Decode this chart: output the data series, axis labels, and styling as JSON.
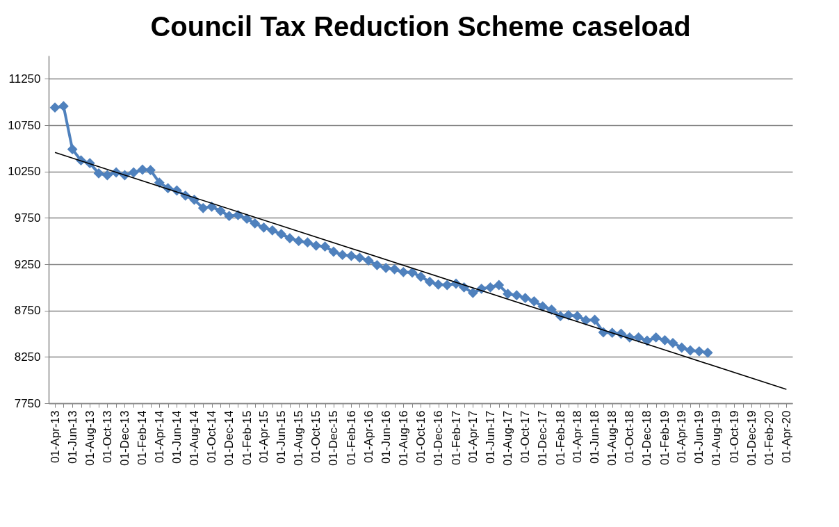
{
  "chart_data": {
    "type": "line",
    "title": "Council Tax Reduction Scheme caseload",
    "xlim": [
      "2013-03-10",
      "2020-04-22"
    ],
    "ylim": [
      7750,
      11500
    ],
    "yticks": [
      7750,
      8250,
      8750,
      9250,
      9750,
      10250,
      10750,
      11250
    ],
    "grid": "y",
    "legend": false,
    "marker": "diamond",
    "line_style": "solid",
    "xticks": [
      {
        "value": "2013-04-01",
        "label": "01-Apr-13"
      },
      {
        "value": "2013-05-01",
        "label": null
      },
      {
        "value": "2013-06-01",
        "label": "01-Jun-13"
      },
      {
        "value": "2013-07-01",
        "label": null
      },
      {
        "value": "2013-08-01",
        "label": "01-Aug-13"
      },
      {
        "value": "2013-09-01",
        "label": null
      },
      {
        "value": "2013-10-01",
        "label": "01-Oct-13"
      },
      {
        "value": "2013-11-01",
        "label": null
      },
      {
        "value": "2013-12-01",
        "label": "01-Dec-13"
      },
      {
        "value": "2014-01-01",
        "label": null
      },
      {
        "value": "2014-02-01",
        "label": "01-Feb-14"
      },
      {
        "value": "2014-03-01",
        "label": null
      },
      {
        "value": "2014-04-01",
        "label": "01-Apr-14"
      },
      {
        "value": "2014-05-01",
        "label": null
      },
      {
        "value": "2014-06-01",
        "label": "01-Jun-14"
      },
      {
        "value": "2014-07-01",
        "label": null
      },
      {
        "value": "2014-08-01",
        "label": "01-Aug-14"
      },
      {
        "value": "2014-09-01",
        "label": null
      },
      {
        "value": "2014-10-01",
        "label": "01-Oct-14"
      },
      {
        "value": "2014-11-01",
        "label": null
      },
      {
        "value": "2014-12-01",
        "label": "01-Dec-14"
      },
      {
        "value": "2015-01-01",
        "label": null
      },
      {
        "value": "2015-02-01",
        "label": "01-Feb-15"
      },
      {
        "value": "2015-03-01",
        "label": null
      },
      {
        "value": "2015-04-01",
        "label": "01-Apr-15"
      },
      {
        "value": "2015-05-01",
        "label": null
      },
      {
        "value": "2015-06-01",
        "label": "01-Jun-15"
      },
      {
        "value": "2015-07-01",
        "label": null
      },
      {
        "value": "2015-08-01",
        "label": "01-Aug-15"
      },
      {
        "value": "2015-09-01",
        "label": null
      },
      {
        "value": "2015-10-01",
        "label": "01-Oct-15"
      },
      {
        "value": "2015-11-01",
        "label": null
      },
      {
        "value": "2015-12-01",
        "label": "01-Dec-15"
      },
      {
        "value": "2016-01-01",
        "label": null
      },
      {
        "value": "2016-02-01",
        "label": "01-Feb-16"
      },
      {
        "value": "2016-03-01",
        "label": null
      },
      {
        "value": "2016-04-01",
        "label": "01-Apr-16"
      },
      {
        "value": "2016-05-01",
        "label": null
      },
      {
        "value": "2016-06-01",
        "label": "01-Jun-16"
      },
      {
        "value": "2016-07-01",
        "label": null
      },
      {
        "value": "2016-08-01",
        "label": "01-Aug-16"
      },
      {
        "value": "2016-09-01",
        "label": null
      },
      {
        "value": "2016-10-01",
        "label": "01-Oct-16"
      },
      {
        "value": "2016-11-01",
        "label": null
      },
      {
        "value": "2016-12-01",
        "label": "01-Dec-16"
      },
      {
        "value": "2017-01-01",
        "label": null
      },
      {
        "value": "2017-02-01",
        "label": "01-Feb-17"
      },
      {
        "value": "2017-03-01",
        "label": null
      },
      {
        "value": "2017-04-01",
        "label": "01-Apr-17"
      },
      {
        "value": "2017-05-01",
        "label": null
      },
      {
        "value": "2017-06-01",
        "label": "01-Jun-17"
      },
      {
        "value": "2017-07-01",
        "label": null
      },
      {
        "value": "2017-08-01",
        "label": "01-Aug-17"
      },
      {
        "value": "2017-09-01",
        "label": null
      },
      {
        "value": "2017-10-01",
        "label": "01-Oct-17"
      },
      {
        "value": "2017-11-01",
        "label": null
      },
      {
        "value": "2017-12-01",
        "label": "01-Dec-17"
      },
      {
        "value": "2018-01-01",
        "label": null
      },
      {
        "value": "2018-02-01",
        "label": "01-Feb-18"
      },
      {
        "value": "2018-03-01",
        "label": null
      },
      {
        "value": "2018-04-01",
        "label": "01-Apr-18"
      },
      {
        "value": "2018-05-01",
        "label": null
      },
      {
        "value": "2018-06-01",
        "label": "01-Jun-18"
      },
      {
        "value": "2018-07-01",
        "label": null
      },
      {
        "value": "2018-08-01",
        "label": "01-Aug-18"
      },
      {
        "value": "2018-09-01",
        "label": null
      },
      {
        "value": "2018-10-01",
        "label": "01-Oct-18"
      },
      {
        "value": "2018-11-01",
        "label": null
      },
      {
        "value": "2018-12-01",
        "label": "01-Dec-18"
      },
      {
        "value": "2019-01-01",
        "label": null
      },
      {
        "value": "2019-02-01",
        "label": "01-Feb-19"
      },
      {
        "value": "2019-03-01",
        "label": null
      },
      {
        "value": "2019-04-01",
        "label": "01-Apr-19"
      },
      {
        "value": "2019-05-01",
        "label": null
      },
      {
        "value": "2019-06-01",
        "label": "01-Jun-19"
      },
      {
        "value": "2019-07-01",
        "label": null
      },
      {
        "value": "2019-08-01",
        "label": "01-Aug-19"
      },
      {
        "value": "2019-09-01",
        "label": null
      },
      {
        "value": "2019-10-01",
        "label": "01-Oct-19"
      },
      {
        "value": "2019-11-01",
        "label": null
      },
      {
        "value": "2019-12-01",
        "label": "01-Dec-19"
      },
      {
        "value": "2020-01-01",
        "label": null
      },
      {
        "value": "2020-02-01",
        "label": "01-Feb-20"
      },
      {
        "value": "2020-03-01",
        "label": null
      },
      {
        "value": "2020-04-01",
        "label": "01-Apr-20"
      }
    ],
    "series": [
      {
        "type": "line",
        "color": "#4f81bd",
        "x": [
          "2013-04-01",
          "2013-05-01",
          "2013-06-01",
          "2013-07-01",
          "2013-08-01",
          "2013-09-01",
          "2013-10-01",
          "2013-11-01",
          "2013-12-01",
          "2014-01-01",
          "2014-02-01",
          "2014-03-01",
          "2014-04-01",
          "2014-05-01",
          "2014-06-01",
          "2014-07-01",
          "2014-08-01",
          "2014-09-01",
          "2014-10-01",
          "2014-11-01",
          "2014-12-01",
          "2015-01-01",
          "2015-02-01",
          "2015-03-01",
          "2015-04-01",
          "2015-05-01",
          "2015-06-01",
          "2015-07-01",
          "2015-08-01",
          "2015-09-01",
          "2015-10-01",
          "2015-11-01",
          "2015-12-01",
          "2016-01-01",
          "2016-02-01",
          "2016-03-01",
          "2016-04-01",
          "2016-05-01",
          "2016-06-01",
          "2016-07-01",
          "2016-08-01",
          "2016-09-01",
          "2016-10-01",
          "2016-11-01",
          "2016-12-01",
          "2017-01-01",
          "2017-02-01",
          "2017-03-01",
          "2017-04-01",
          "2017-05-01",
          "2017-06-01",
          "2017-07-01",
          "2017-08-01",
          "2017-09-01",
          "2017-10-01",
          "2017-11-01",
          "2017-12-01",
          "2018-01-01",
          "2018-02-01",
          "2018-03-01",
          "2018-04-01",
          "2018-05-01",
          "2018-06-01",
          "2018-07-01",
          "2018-08-01",
          "2018-09-01",
          "2018-10-01",
          "2018-11-01",
          "2018-12-01",
          "2019-01-01",
          "2019-02-01",
          "2019-03-01",
          "2019-04-01",
          "2019-05-01",
          "2019-06-01",
          "2019-07-01"
        ],
        "values": [
          10940,
          10955,
          10490,
          10370,
          10340,
          10230,
          10210,
          10240,
          10210,
          10240,
          10270,
          10265,
          10130,
          10070,
          10045,
          9990,
          9945,
          9855,
          9870,
          9825,
          9770,
          9780,
          9740,
          9690,
          9645,
          9615,
          9575,
          9530,
          9500,
          9485,
          9450,
          9440,
          9385,
          9350,
          9340,
          9320,
          9290,
          9240,
          9210,
          9195,
          9165,
          9160,
          9115,
          9060,
          9030,
          9025,
          9040,
          9000,
          8940,
          8985,
          9000,
          9025,
          8930,
          8915,
          8885,
          8850,
          8795,
          8760,
          8690,
          8700,
          8690,
          8645,
          8650,
          8515,
          8510,
          8500,
          8460,
          8460,
          8425,
          8460,
          8430,
          8400,
          8350,
          8320,
          8310,
          8295
        ]
      },
      {
        "type": "line",
        "color": "#000000",
        "marker": "none",
        "x": [
          "2013-04-01",
          "2020-04-01"
        ],
        "values": [
          10455,
          7900
        ]
      }
    ]
  }
}
